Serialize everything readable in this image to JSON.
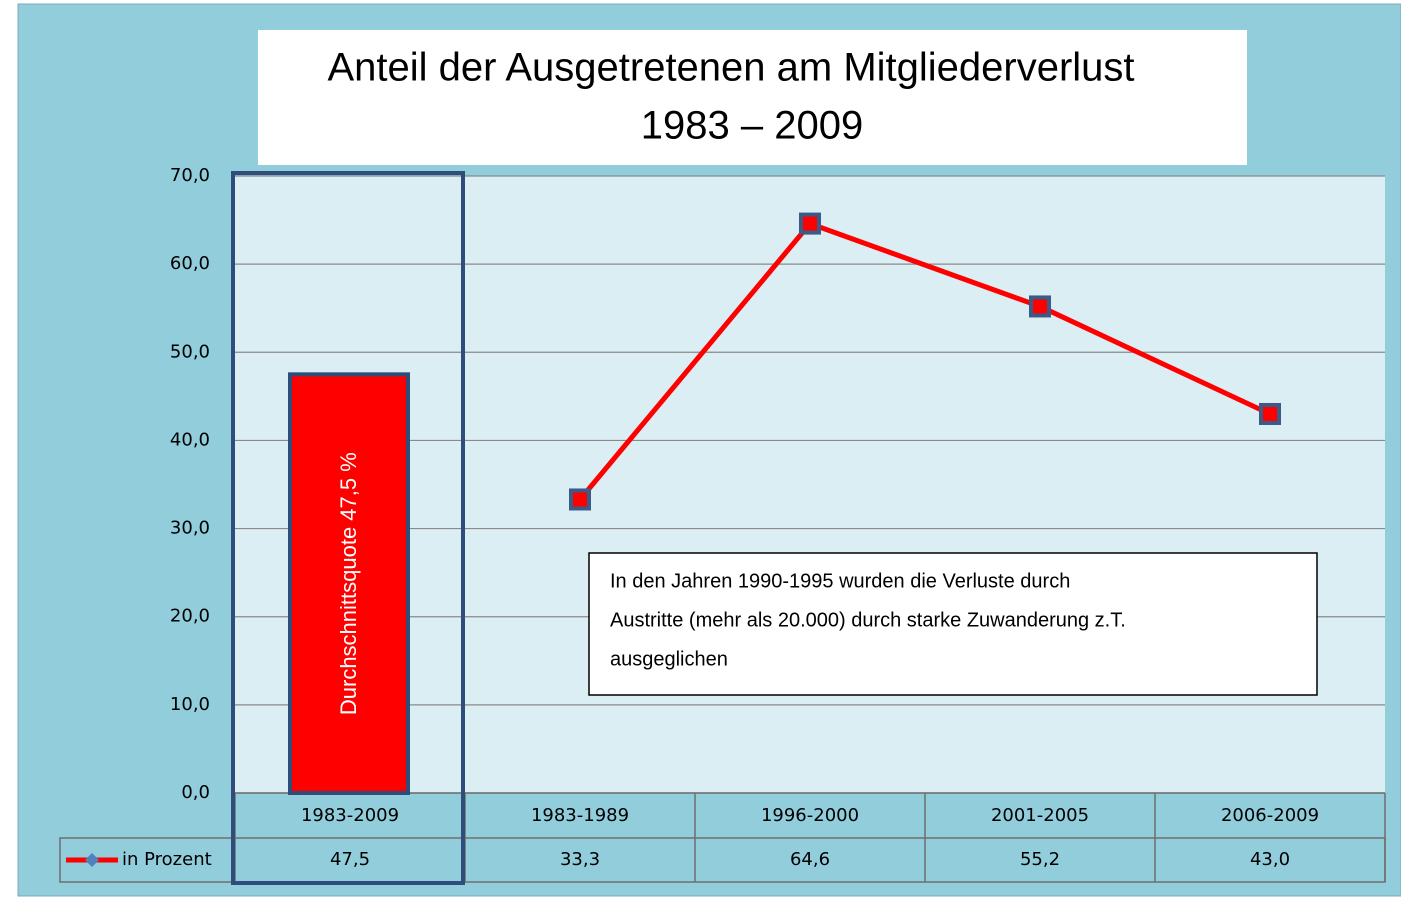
{
  "chart_data": {
    "type": "line",
    "title": "Anteil der Ausgetretenen am Mitgliederverlust",
    "subtitle": "1983 – 2009",
    "categories": [
      "1983-2009",
      "1983-1989",
      "1996-2000",
      "2001-2005",
      "2006-2009"
    ],
    "series": [
      {
        "name": "in Prozent",
        "color": "#ff0000",
        "values": [
          47.5,
          33.3,
          64.6,
          55.2,
          43.0
        ],
        "value_labels": [
          "47,5",
          "33,3",
          "64,6",
          "55,2",
          "43,0"
        ],
        "mark_types": [
          "bar",
          "line",
          "line",
          "line",
          "line"
        ]
      }
    ],
    "bar_label": "Durchschnittsquote 47,5 %",
    "annotation": [
      "In den Jahren 1990-1995 wurden die Verluste durch",
      "Austritte (mehr als 20.000) durch starke Zuwanderung z.T.",
      "ausgeglichen"
    ],
    "ylim": [
      0,
      70
    ],
    "yticks": [
      {
        "value": 0,
        "label": "0,0"
      },
      {
        "value": 10,
        "label": "10,0"
      },
      {
        "value": 20,
        "label": "20,0"
      },
      {
        "value": 30,
        "label": "30,0"
      },
      {
        "value": 40,
        "label": "40,0"
      },
      {
        "value": 50,
        "label": "50,0"
      },
      {
        "value": 60,
        "label": "60,0"
      },
      {
        "value": 70,
        "label": "70,0"
      }
    ],
    "grid": true,
    "data_table": true
  }
}
